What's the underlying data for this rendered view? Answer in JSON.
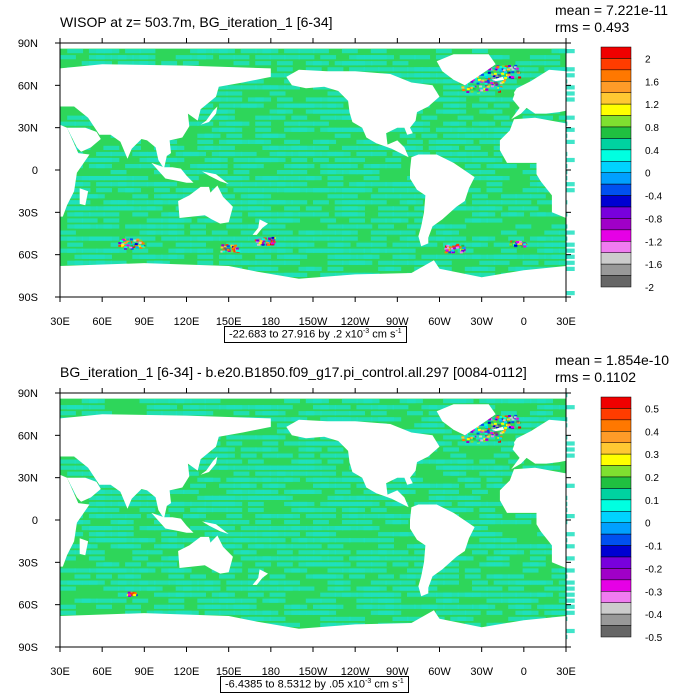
{
  "panels": [
    {
      "title": "WISOP at z= 503.7m, BG_iteration_1 [6-34]",
      "mean": "mean = 7.221e-11",
      "rms": "rms = 0.493",
      "range_text": "-22.683 to 27.916 by .2 x10",
      "range_exp": "-3",
      "range_units": " cm s",
      "range_units_exp": "-1",
      "colorbar_labels": [
        "2",
        "1.6",
        "1.2",
        "0.8",
        "0.4",
        "0",
        "-0.4",
        "-0.8",
        "-1.2",
        "-1.6",
        "-2"
      ]
    },
    {
      "title": "BG_iteration_1 [6-34] - b.e20.B1850.f09_g17.pi_control.all.297 [0084-0112]",
      "mean": "mean = 1.854e-10",
      "rms": "rms = 0.1102",
      "range_text": "-6.4385 to 8.5312 by .05 x10",
      "range_exp": "-3",
      "range_units": " cm s",
      "range_units_exp": "-1",
      "colorbar_labels": [
        "0.5",
        "0.4",
        "0.3",
        "0.2",
        "0.1",
        "0",
        "-0.1",
        "-0.2",
        "-0.3",
        "-0.4",
        "-0.5"
      ]
    }
  ],
  "chart_data": [
    {
      "type": "heatmap",
      "title": "WISOP at z= 503.7m, BG_iteration_1 [6-34]",
      "x_tick_labels": [
        "30E",
        "60E",
        "90E",
        "120E",
        "150E",
        "180",
        "150W",
        "120W",
        "90W",
        "60W",
        "30W",
        "0",
        "30E"
      ],
      "y_tick_labels": [
        "90N",
        "60N",
        "30N",
        "0",
        "30S",
        "60S",
        "90S"
      ],
      "xlim": [
        30,
        390
      ],
      "ylim": [
        -90,
        90
      ],
      "color_levels": [
        -2,
        -1.8,
        -1.6,
        -1.4,
        -1.2,
        -1.0,
        -0.8,
        -0.6,
        -0.4,
        -0.2,
        0,
        0.2,
        0.4,
        0.6,
        0.8,
        1.0,
        1.2,
        1.4,
        1.6,
        1.8,
        2
      ],
      "mean": 7.221e-11,
      "rms": 0.493,
      "min": -22.683,
      "max": 27.916,
      "interval": 0.2
    },
    {
      "type": "heatmap",
      "title": "BG_iteration_1 [6-34] - b.e20.B1850.f09_g17.pi_control.all.297 [0084-0112]",
      "x_tick_labels": [
        "30E",
        "60E",
        "90E",
        "120E",
        "150E",
        "180",
        "150W",
        "120W",
        "90W",
        "60W",
        "30W",
        "0",
        "30E"
      ],
      "y_tick_labels": [
        "90N",
        "60N",
        "30N",
        "0",
        "30S",
        "60S",
        "90S"
      ],
      "xlim": [
        30,
        390
      ],
      "ylim": [
        -90,
        90
      ],
      "color_levels": [
        -0.5,
        -0.45,
        -0.4,
        -0.35,
        -0.3,
        -0.25,
        -0.2,
        -0.15,
        -0.1,
        -0.05,
        0,
        0.05,
        0.1,
        0.15,
        0.2,
        0.25,
        0.3,
        0.35,
        0.4,
        0.45,
        0.5
      ],
      "mean": 1.854e-10,
      "rms": 0.1102,
      "min": -6.4385,
      "max": 8.5312,
      "interval": 0.05
    }
  ],
  "colors": {
    "palette": [
      "#f00000",
      "#ff3c00",
      "#ff7800",
      "#ff9b28",
      "#ffc832",
      "#ffff00",
      "#7fe030",
      "#20c040",
      "#00d2a0",
      "#00ffe0",
      "#00d2ff",
      "#00a0ff",
      "#0050f0",
      "#0000d2",
      "#7800dc",
      "#a000c8",
      "#e600e6",
      "#f07cf0",
      "#cccccc",
      "#999999",
      "#666666"
    ],
    "ocean": "#2ed65a",
    "ocean_alt": "#1fe0c0",
    "land": "#ffffff"
  }
}
